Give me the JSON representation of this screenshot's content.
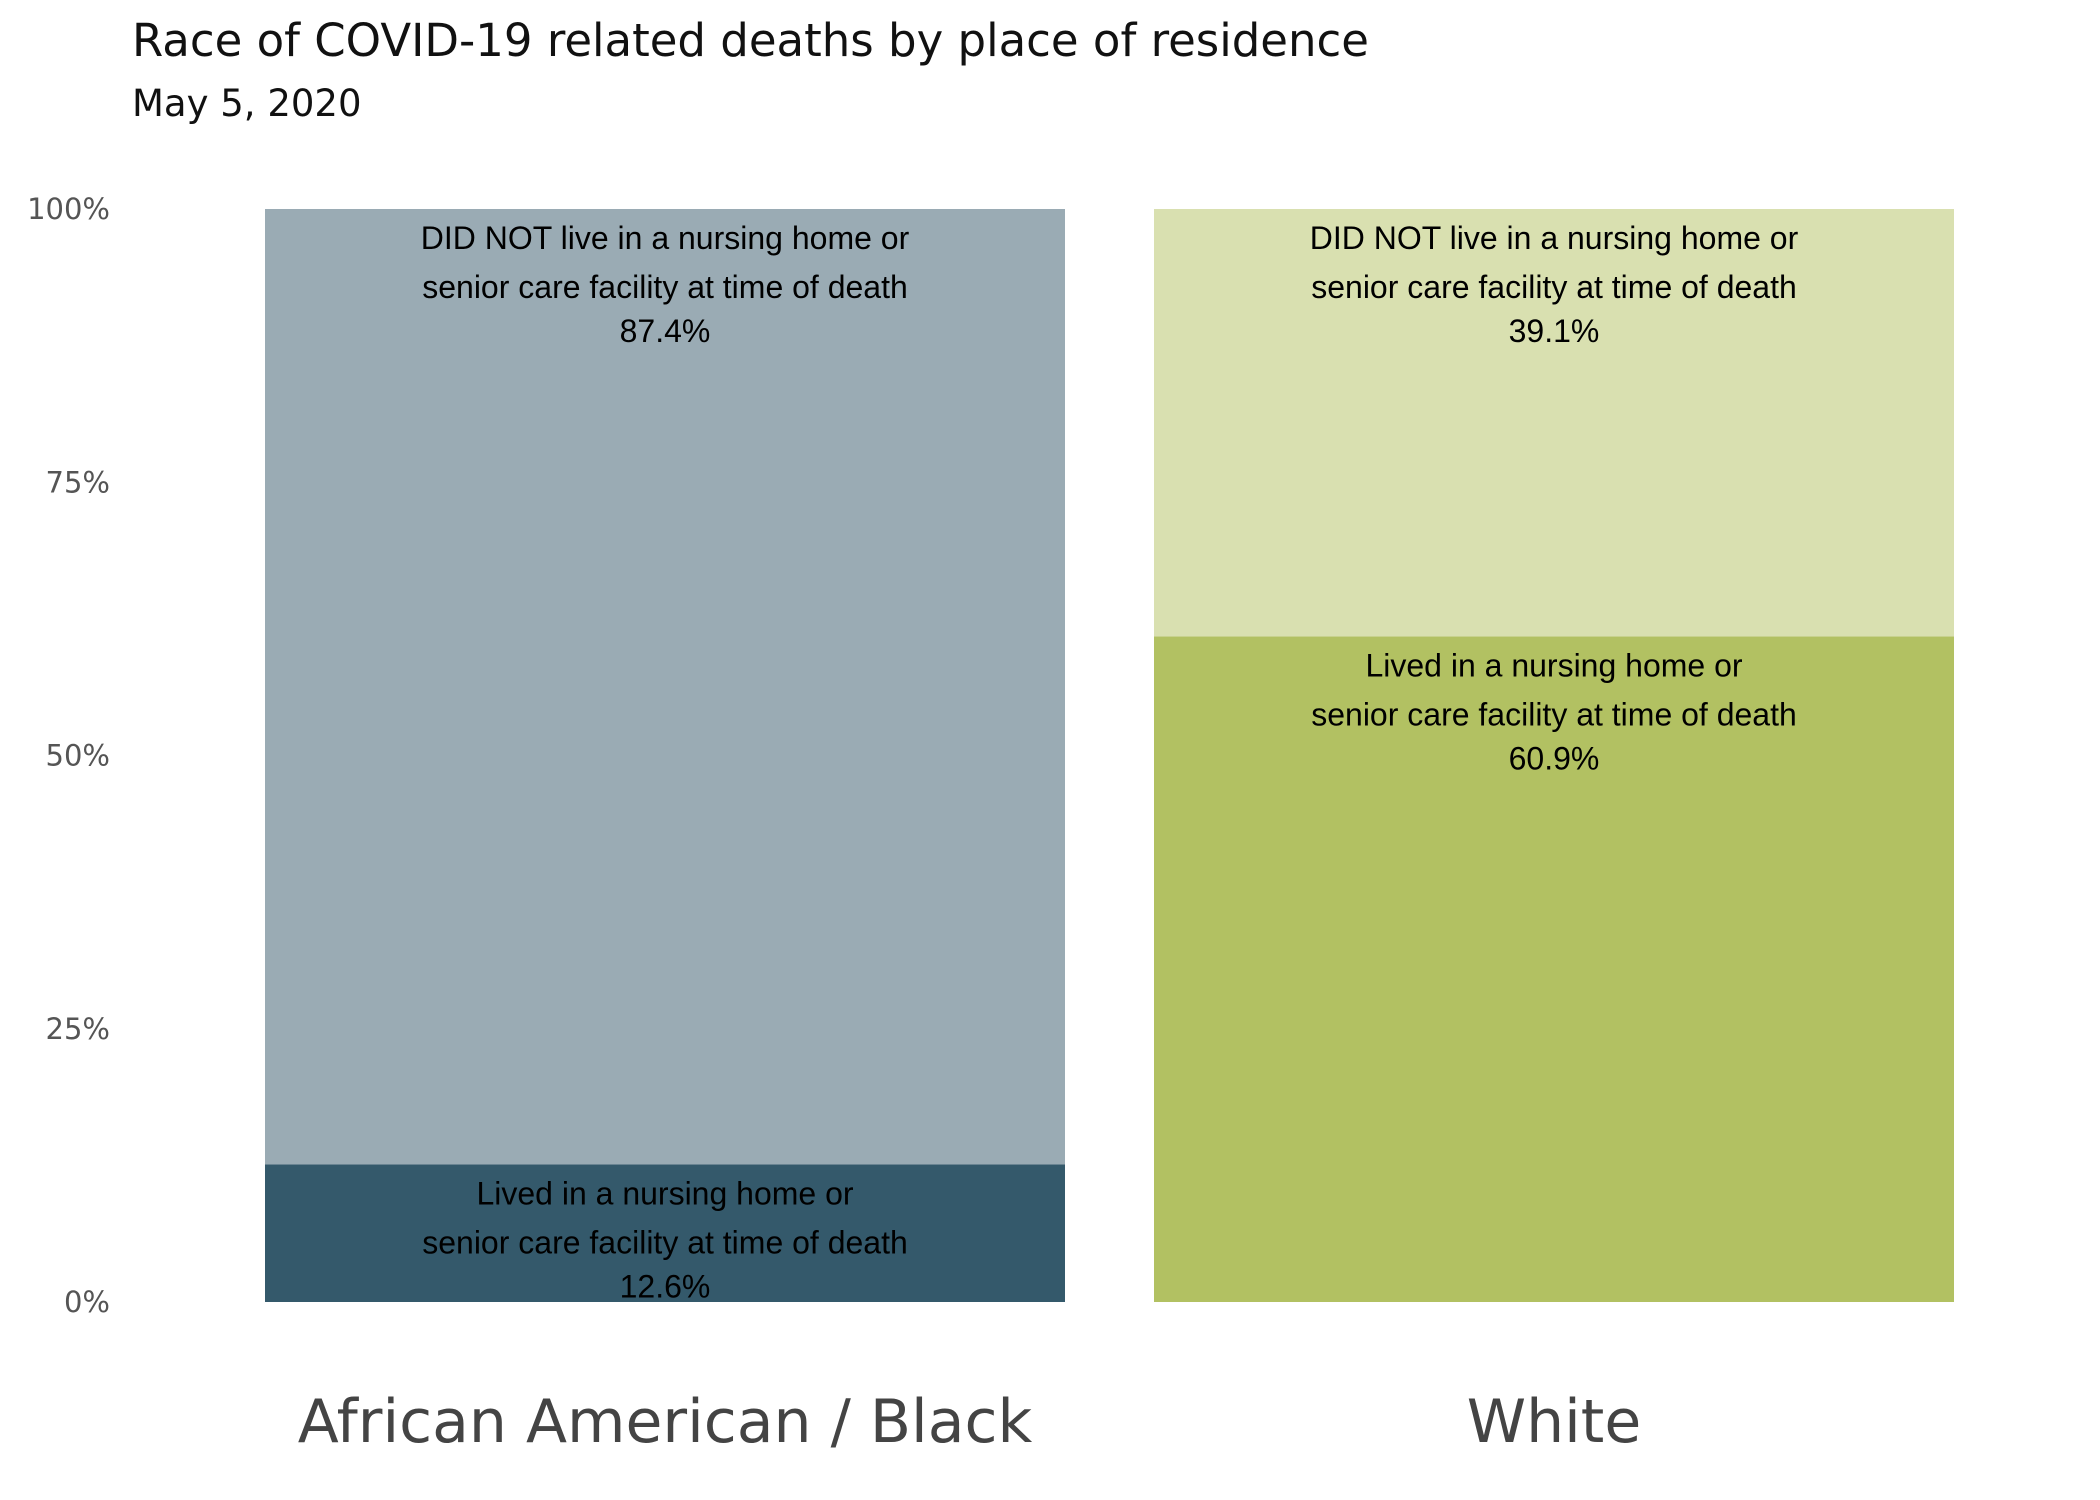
{
  "chart_data": {
    "type": "bar",
    "stacked": true,
    "title": "Race of COVID-19 related deaths by place of residence",
    "subtitle": "May 5, 2020",
    "xlabel": "",
    "ylabel": "",
    "ylim": [
      0,
      100
    ],
    "yticks": [
      "0%",
      "25%",
      "50%",
      "75%",
      "100%"
    ],
    "ytick_values": [
      0,
      25,
      50,
      75,
      100
    ],
    "grid": false,
    "categories": [
      "African American / Black",
      "White"
    ],
    "series": [
      {
        "name": "Lived in a nursing home or senior care facility at time of death",
        "label_lines": [
          "Lived in a nursing home or",
          "senior care facility at time of death"
        ],
        "values": [
          12.6,
          60.9
        ],
        "value_labels": [
          "12.6%",
          "60.9%"
        ],
        "colors": [
          "#34596b",
          "#b2c162"
        ]
      },
      {
        "name": "DID NOT live in a nursing home or senior care facility at time of death",
        "label_lines": [
          "DID NOT live in a nursing home or",
          "senior care facility at time of death"
        ],
        "values": [
          87.4,
          39.1
        ],
        "value_labels": [
          "87.4%",
          "39.1%"
        ],
        "colors": [
          "#9aabb4",
          "#d9e0b0"
        ]
      }
    ]
  }
}
